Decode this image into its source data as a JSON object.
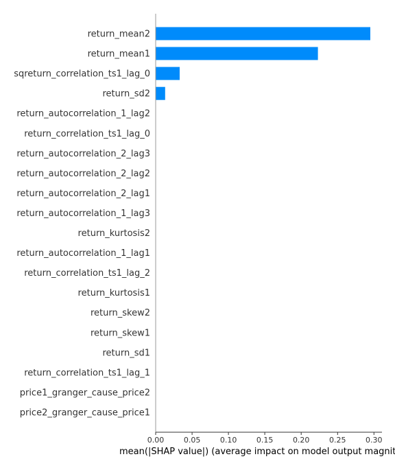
{
  "chart_data": {
    "type": "bar",
    "orientation": "horizontal",
    "title": "",
    "xlabel": "mean(|SHAP value|) (average impact on model output magnitude)",
    "ylabel": "",
    "xlim": [
      0,
      0.31
    ],
    "x_ticks": [
      {
        "value": 0.0,
        "label": "0.00"
      },
      {
        "value": 0.05,
        "label": "0.05"
      },
      {
        "value": 0.1,
        "label": "0.10"
      },
      {
        "value": 0.15,
        "label": "0.15"
      },
      {
        "value": 0.2,
        "label": "0.20"
      },
      {
        "value": 0.25,
        "label": "0.25"
      },
      {
        "value": 0.3,
        "label": "0.30"
      }
    ],
    "categories": [
      "return_mean2",
      "return_mean1",
      "sqreturn_correlation_ts1_lag_0",
      "return_sd2",
      "return_autocorrelation_1_lag2",
      "return_correlation_ts1_lag_0",
      "return_autocorrelation_2_lag3",
      "return_autocorrelation_2_lag2",
      "return_autocorrelation_2_lag1",
      "return_autocorrelation_1_lag3",
      "return_kurtosis2",
      "return_autocorrelation_1_lag1",
      "return_correlation_ts1_lag_2",
      "return_kurtosis1",
      "return_skew2",
      "return_skew1",
      "return_sd1",
      "return_correlation_ts1_lag_1",
      "price1_granger_cause_price2",
      "price2_granger_cause_price1"
    ],
    "values": [
      0.295,
      0.223,
      0.033,
      0.013,
      0,
      0,
      0,
      0,
      0,
      0,
      0,
      0,
      0,
      0,
      0,
      0,
      0,
      0,
      0,
      0
    ],
    "bar_color": "#008bfb",
    "grid": false,
    "legend": "none"
  }
}
